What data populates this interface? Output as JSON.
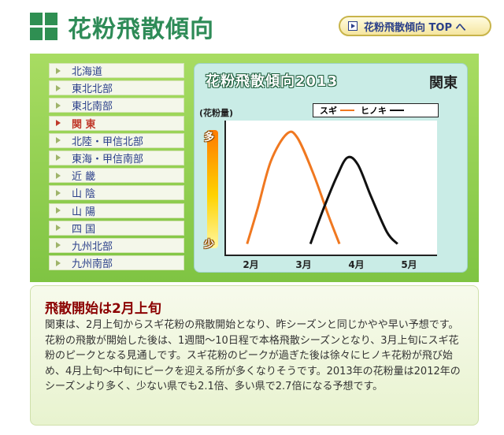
{
  "header": {
    "title": "花粉飛散傾向",
    "top_link": "花粉飛散傾向 TOP へ"
  },
  "regions": [
    {
      "label": "北海道",
      "active": false
    },
    {
      "label": "東北北部",
      "active": false
    },
    {
      "label": "東北南部",
      "active": false
    },
    {
      "label": "関 東",
      "active": true
    },
    {
      "label": "北陸・甲信北部",
      "active": false
    },
    {
      "label": "東海・甲信南部",
      "active": false
    },
    {
      "label": "近 畿",
      "active": false
    },
    {
      "label": "山 陰",
      "active": false
    },
    {
      "label": "山 陽",
      "active": false
    },
    {
      "label": "四 国",
      "active": false
    },
    {
      "label": "九州北部",
      "active": false
    },
    {
      "label": "九州南部",
      "active": false
    }
  ],
  "chart_data": {
    "type": "line",
    "title": "花粉飛散傾向2013",
    "region": "関東",
    "ylabel": "(花粉量)",
    "y_high_label": "多",
    "y_low_label": "少",
    "x_ticks": [
      "2月",
      "3月",
      "4月",
      "5月"
    ],
    "grid": false,
    "legend_position": "top-right",
    "series": [
      {
        "name": "スギ",
        "color": "#f07820",
        "points": [
          [
            1.9,
            0.05
          ],
          [
            2.1,
            0.35
          ],
          [
            2.35,
            0.75
          ],
          [
            2.65,
            0.98
          ],
          [
            2.85,
            0.95
          ],
          [
            3.15,
            0.65
          ],
          [
            3.45,
            0.28
          ],
          [
            3.65,
            0.05
          ]
        ]
      },
      {
        "name": "ヒノキ",
        "color": "#111111",
        "points": [
          [
            3.1,
            0.05
          ],
          [
            3.35,
            0.35
          ],
          [
            3.6,
            0.62
          ],
          [
            3.8,
            0.78
          ],
          [
            4.0,
            0.72
          ],
          [
            4.25,
            0.45
          ],
          [
            4.55,
            0.15
          ],
          [
            4.75,
            0.05
          ]
        ]
      }
    ]
  },
  "article": {
    "heading": "飛散開始は2月上旬",
    "body": "関東は、2月上旬からスギ花粉の飛散開始となり、昨シーズンと同じかやや早い予想です。花粉の飛散が開始した後は、1週間〜10日程で本格飛散シーズンとなり、3月上旬にスギ花粉のピークとなる見通しです。スギ花粉のピークが過ぎた後は徐々にヒノキ花粉が飛び始め、4月上旬〜中旬にピークを迎える所が多くなりそうです。2013年の花粉量は2012年のシーズンより多く、少ない県でも2.1倍、多い県で2.7倍になる予想です。"
  }
}
